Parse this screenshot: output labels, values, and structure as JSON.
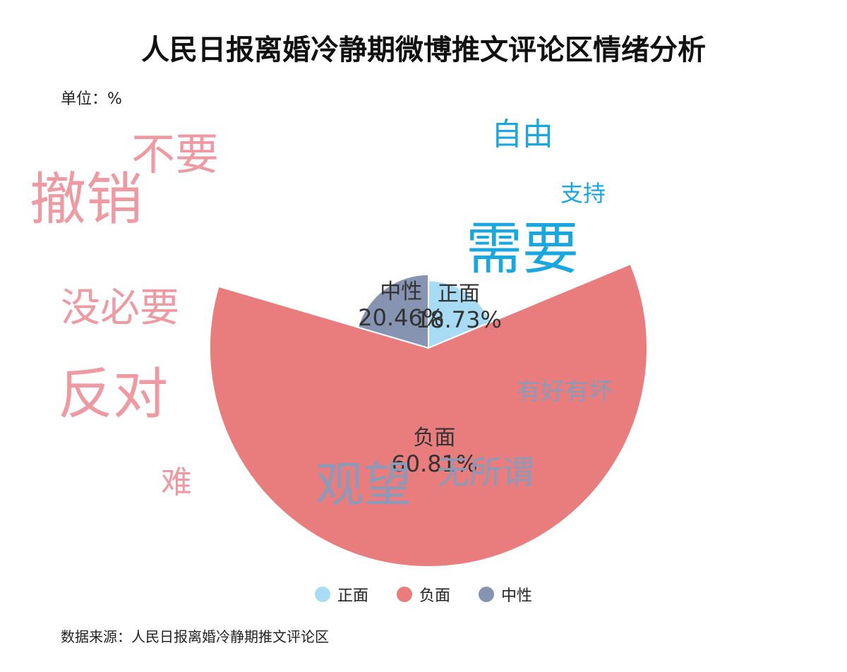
{
  "title": "人民日报离婚冷静期微博推文评论区情绪分析",
  "unit": "单位：%",
  "source": "数据来源：人民日报离婚冷静期推文评论区",
  "chart_data": {
    "type": "pie",
    "variant": "rose",
    "title": "人民日报离婚冷静期微博推文评论区情绪分析",
    "unit": "%",
    "slices": [
      {
        "name": "正面",
        "value": 18.73,
        "label": "18.73%",
        "color": "#a8dcf5"
      },
      {
        "name": "负面",
        "value": 60.81,
        "label": "60.81%",
        "color": "#e97c7c"
      },
      {
        "name": "中性",
        "value": 20.46,
        "label": "20.46%",
        "color": "#8693b1"
      }
    ],
    "legend": {
      "placement": "bottom",
      "entries": [
        "正面",
        "负面",
        "中性"
      ]
    }
  },
  "keywords": [
    {
      "text": "自由",
      "sentiment": "正面",
      "color": "#1aa7e0"
    },
    {
      "text": "支持",
      "sentiment": "正面",
      "color": "#1aa7e0"
    },
    {
      "text": "需要",
      "sentiment": "正面",
      "color": "#1aa7e0"
    },
    {
      "text": "不要",
      "sentiment": "负面",
      "color": "#ee9aa3"
    },
    {
      "text": "撤销",
      "sentiment": "负面",
      "color": "#ee9aa3"
    },
    {
      "text": "没必要",
      "sentiment": "负面",
      "color": "#ee9aa3"
    },
    {
      "text": "反对",
      "sentiment": "负面",
      "color": "#ee9aa3"
    },
    {
      "text": "难",
      "sentiment": "负面",
      "color": "#ee9aa3"
    },
    {
      "text": "有好有坏",
      "sentiment": "中性",
      "color": "#8a9ab8"
    },
    {
      "text": "观望",
      "sentiment": "中性",
      "color": "#8a9ab8"
    },
    {
      "text": "无所谓",
      "sentiment": "中性",
      "color": "#8a9ab8"
    }
  ]
}
